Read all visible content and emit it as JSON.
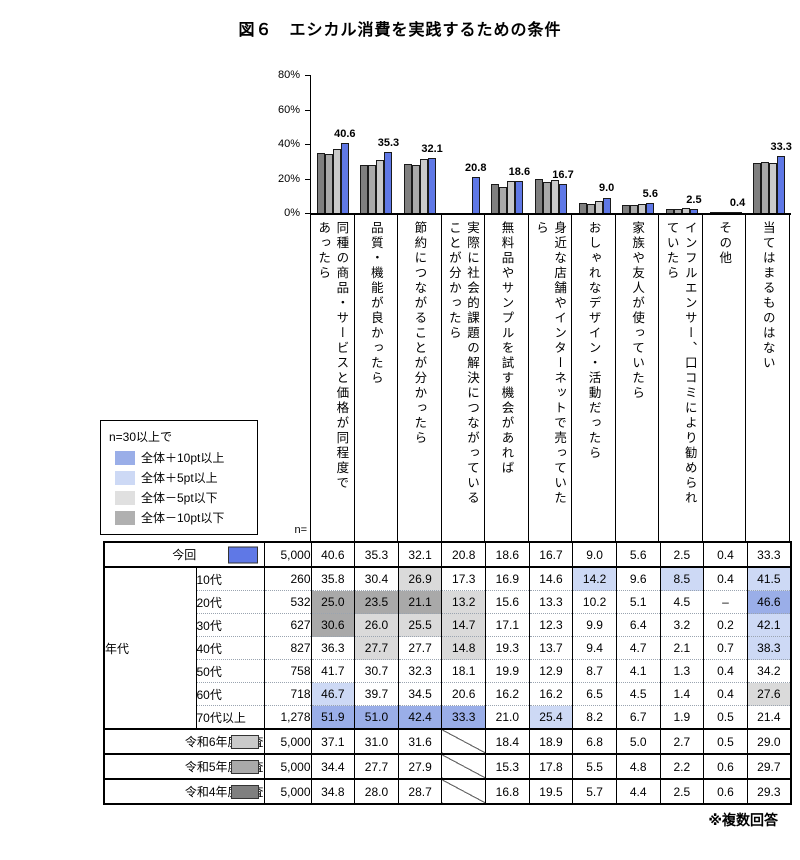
{
  "title": "図６　エシカル消費を実践するための条件",
  "note": "※複数回答",
  "colors": {
    "bar_blue": "#5f78e6",
    "bar_gray_r4": "#7f7f7f",
    "bar_gray_r5": "#a9a9a9",
    "bar_gray_r6": "#cacaca",
    "hl_plus10": "#9aaee8",
    "hl_plus5": "#cdd9f5",
    "hl_minus5": "#dadada",
    "hl_minus10": "#a9a9a9"
  },
  "legend": {
    "title": "n=30以上で",
    "items": [
      {
        "label": "全体＋10pt以上",
        "color": "#9aaee8"
      },
      {
        "label": "全体＋5pt以上",
        "color": "#cdd9f5"
      },
      {
        "label": "全体－5pt以下",
        "color": "#e0e0e0"
      },
      {
        "label": "全体－10pt以下",
        "color": "#b0b0b0"
      }
    ]
  },
  "chart_data": {
    "type": "bar",
    "title": "図６　エシカル消費を実践するための条件",
    "ylim": [
      0,
      80
    ],
    "yticks": [
      "80%",
      "60%",
      "40%",
      "20%",
      "0%"
    ],
    "grid": false,
    "legend_position": "none",
    "categories": [
      "同種の商品・サービスと価格が同程度で\nあったら",
      "品質・機能が良かったら",
      "節約につながることが分かったら",
      "実際に社会的課題の解決につながっている\nことが分かったら",
      "無料品やサンプルを試す機会があれば",
      "身近な店舗やインターネットで売っていた\nら",
      "おしゃれなデザイン・活動だったら",
      "家族や友人が使っていたら",
      "インフルエンサー、口コミにより勧められ\nていたら",
      "その他",
      "当てはまるものはない"
    ],
    "series": [
      {
        "key": "reiwa4",
        "name": "令和4年度調査",
        "color": "#7f7f7f",
        "values": [
          34.8,
          28.0,
          28.7,
          null,
          16.8,
          19.5,
          5.7,
          4.4,
          2.5,
          0.6,
          29.3
        ]
      },
      {
        "key": "reiwa5",
        "name": "令和5年度調査",
        "color": "#a9a9a9",
        "values": [
          34.4,
          27.7,
          27.9,
          null,
          15.3,
          17.8,
          5.5,
          4.8,
          2.2,
          0.6,
          29.7
        ]
      },
      {
        "key": "reiwa6",
        "name": "令和6年度調査",
        "color": "#cacaca",
        "values": [
          37.1,
          31.0,
          31.6,
          null,
          18.4,
          18.9,
          6.8,
          5.0,
          2.7,
          0.5,
          29.0
        ]
      },
      {
        "key": "current",
        "name": "今回",
        "color": "#5f78e6",
        "values": [
          40.6,
          35.3,
          32.1,
          20.8,
          18.6,
          16.7,
          9.0,
          5.6,
          2.5,
          0.4,
          33.3
        ]
      }
    ],
    "data_labels": [
      "40.6",
      "35.3",
      "32.1",
      "20.8",
      "18.6",
      "16.7",
      "9.0",
      "5.6",
      "2.5",
      "0.4",
      "33.3"
    ]
  },
  "table": {
    "n_header": "n=",
    "group_label": "年代",
    "rows": [
      {
        "type": "today",
        "label": "今回",
        "swatch": "#5f78e6",
        "n": "5,000",
        "values": [
          "40.6",
          "35.3",
          "32.1",
          "20.8",
          "18.6",
          "16.7",
          "9.0",
          "5.6",
          "2.5",
          "0.4",
          "33.3"
        ],
        "hl": [
          "",
          "",
          "",
          "",
          "",
          "",
          "",
          "",
          "",
          "",
          ""
        ]
      },
      {
        "type": "age",
        "label": "10代",
        "n": "260",
        "values": [
          "35.8",
          "30.4",
          "26.9",
          "17.3",
          "16.9",
          "14.6",
          "14.2",
          "9.6",
          "8.5",
          "0.4",
          "41.5"
        ],
        "hl": [
          "",
          "",
          "lg",
          "",
          "",
          "",
          "lb",
          "",
          "lb",
          "",
          "lb"
        ]
      },
      {
        "type": "age",
        "label": "20代",
        "n": "532",
        "values": [
          "25.0",
          "23.5",
          "21.1",
          "13.2",
          "15.6",
          "13.3",
          "10.2",
          "5.1",
          "4.5",
          "–",
          "46.6"
        ],
        "hl": [
          "dg",
          "dg",
          "dg",
          "lg",
          "",
          "",
          "",
          "",
          "",
          "",
          "mb"
        ]
      },
      {
        "type": "age",
        "label": "30代",
        "n": "627",
        "values": [
          "30.6",
          "26.0",
          "25.5",
          "14.7",
          "17.1",
          "12.3",
          "9.9",
          "6.4",
          "3.2",
          "0.2",
          "42.1"
        ],
        "hl": [
          "dg",
          "lg",
          "lg",
          "lg",
          "",
          "",
          "",
          "",
          "",
          "",
          "lb"
        ]
      },
      {
        "type": "age",
        "label": "40代",
        "n": "827",
        "values": [
          "36.3",
          "27.7",
          "27.7",
          "14.8",
          "19.3",
          "13.7",
          "9.4",
          "4.7",
          "2.1",
          "0.7",
          "38.3"
        ],
        "hl": [
          "",
          "lg",
          "",
          "lg",
          "",
          "",
          "",
          "",
          "",
          "",
          "lb"
        ]
      },
      {
        "type": "age",
        "label": "50代",
        "n": "758",
        "values": [
          "41.7",
          "30.7",
          "32.3",
          "18.1",
          "19.9",
          "12.9",
          "8.7",
          "4.1",
          "1.3",
          "0.4",
          "34.2"
        ],
        "hl": [
          "",
          "",
          "",
          "",
          "",
          "",
          "",
          "",
          "",
          "",
          ""
        ]
      },
      {
        "type": "age",
        "label": "60代",
        "n": "718",
        "values": [
          "46.7",
          "39.7",
          "34.5",
          "20.6",
          "16.2",
          "16.2",
          "6.5",
          "4.5",
          "1.4",
          "0.4",
          "27.6"
        ],
        "hl": [
          "lb",
          "",
          "",
          "",
          "",
          "",
          "",
          "",
          "",
          "",
          "lg"
        ]
      },
      {
        "type": "age",
        "label": "70代以上",
        "n": "1,278",
        "values": [
          "51.9",
          "51.0",
          "42.4",
          "33.3",
          "21.0",
          "25.4",
          "8.2",
          "6.7",
          "1.9",
          "0.5",
          "21.4"
        ],
        "hl": [
          "mb",
          "mb",
          "mb",
          "mb",
          "",
          "lb",
          "",
          "",
          "",
          "",
          ""
        ]
      },
      {
        "type": "reiwa",
        "label": "令和6年度調査",
        "swatch": "#cacaca",
        "n": "5,000",
        "values": [
          "37.1",
          "31.0",
          "31.6",
          "",
          "18.4",
          "18.9",
          "6.8",
          "5.0",
          "2.7",
          "0.5",
          "29.0"
        ],
        "hl": [
          "",
          "",
          "",
          "slash",
          "",
          "",
          "",
          "",
          "",
          "",
          ""
        ]
      },
      {
        "type": "reiwa",
        "label": "令和5年度調査",
        "swatch": "#a9a9a9",
        "n": "5,000",
        "values": [
          "34.4",
          "27.7",
          "27.9",
          "",
          "15.3",
          "17.8",
          "5.5",
          "4.8",
          "2.2",
          "0.6",
          "29.7"
        ],
        "hl": [
          "",
          "",
          "",
          "slash",
          "",
          "",
          "",
          "",
          "",
          "",
          ""
        ]
      },
      {
        "type": "reiwa",
        "label": "令和4年度調査",
        "swatch": "#7f7f7f",
        "n": "5,000",
        "values": [
          "34.8",
          "28.0",
          "28.7",
          "",
          "16.8",
          "19.5",
          "5.7",
          "4.4",
          "2.5",
          "0.6",
          "29.3"
        ],
        "hl": [
          "",
          "",
          "",
          "slash",
          "",
          "",
          "",
          "",
          "",
          "",
          ""
        ]
      }
    ]
  }
}
